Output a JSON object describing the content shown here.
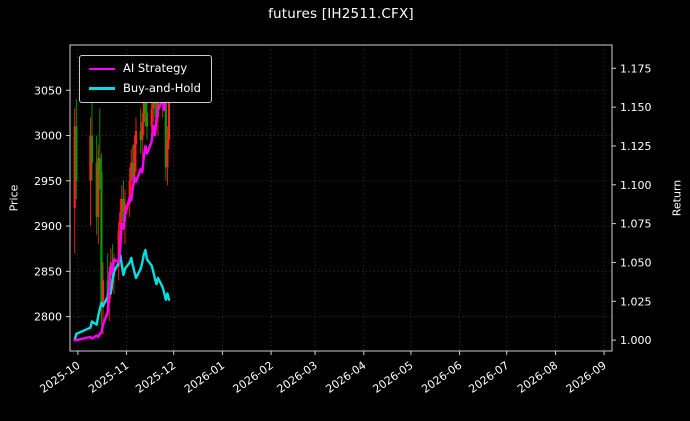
{
  "chart_data": {
    "type": "candlestick+line",
    "title": "futures [IH2511.CFX]",
    "ylabel_left": "Price",
    "ylabel_right": "Return",
    "legend_position": "upper-left",
    "grid": "dotted",
    "x_domain": [
      "2025-09-26",
      "2026-09-06"
    ],
    "x_ticks": [
      {
        "d": "2025-10-01",
        "label": "2025-10"
      },
      {
        "d": "2025-11-01",
        "label": "2025-11"
      },
      {
        "d": "2025-12-01",
        "label": "2025-12"
      },
      {
        "d": "2026-01-01",
        "label": "2026-01"
      },
      {
        "d": "2026-02-01",
        "label": "2026-02"
      },
      {
        "d": "2026-03-01",
        "label": "2026-03"
      },
      {
        "d": "2026-04-01",
        "label": "2026-04"
      },
      {
        "d": "2026-05-01",
        "label": "2026-05"
      },
      {
        "d": "2026-06-01",
        "label": "2026-06"
      },
      {
        "d": "2026-07-01",
        "label": "2026-07"
      },
      {
        "d": "2026-08-01",
        "label": "2026-08"
      },
      {
        "d": "2026-09-01",
        "label": "2026-09"
      }
    ],
    "price_axis": {
      "range": [
        2762,
        3100
      ],
      "ticks": [
        {
          "v": 2800,
          "label": "2800"
        },
        {
          "v": 2850,
          "label": "2850"
        },
        {
          "v": 2900,
          "label": "2900"
        },
        {
          "v": 2950,
          "label": "2950"
        },
        {
          "v": 3000,
          "label": "3000"
        },
        {
          "v": 3050,
          "label": "3050"
        }
      ]
    },
    "return_axis": {
      "range": [
        0.993,
        1.19
      ],
      "ticks": [
        {
          "v": 1.0,
          "label": "1.000"
        },
        {
          "v": 1.025,
          "label": "1.025"
        },
        {
          "v": 1.05,
          "label": "1.050"
        },
        {
          "v": 1.075,
          "label": "1.075"
        },
        {
          "v": 1.1,
          "label": "1.100"
        },
        {
          "v": 1.125,
          "label": "1.125"
        },
        {
          "v": 1.15,
          "label": "1.150"
        },
        {
          "v": 1.175,
          "label": "1.175"
        }
      ]
    },
    "dates": [
      "2025-09-29",
      "2025-09-30",
      "2025-10-09",
      "2025-10-10",
      "2025-10-13",
      "2025-10-14",
      "2025-10-15",
      "2025-10-16",
      "2025-10-17",
      "2025-10-20",
      "2025-10-21",
      "2025-10-22",
      "2025-10-23",
      "2025-10-24",
      "2025-10-27",
      "2025-10-28",
      "2025-10-29",
      "2025-10-30",
      "2025-10-31",
      "2025-11-03",
      "2025-11-04",
      "2025-11-05",
      "2025-11-06",
      "2025-11-07",
      "2025-11-10",
      "2025-11-11",
      "2025-11-12",
      "2025-11-13",
      "2025-11-14",
      "2025-11-17",
      "2025-11-18",
      "2025-11-19",
      "2025-11-20",
      "2025-11-21",
      "2025-11-24",
      "2025-11-25",
      "2025-11-26",
      "2025-11-27",
      "2025-11-28"
    ],
    "candles": {
      "o": [
        2920,
        3010,
        2950,
        3000,
        2970,
        2910,
        2975,
        2960,
        2810,
        2840,
        2815,
        2850,
        2860,
        2845,
        2855,
        2895,
        2915,
        2930,
        2905,
        2925,
        2950,
        2970,
        2955,
        2990,
        3005,
        2995,
        3015,
        3040,
        3025,
        3010,
        3030,
        3055,
        3035,
        3020,
        3040,
        3060,
        3045,
        2965,
        2995
      ],
      "h": [
        3030,
        3040,
        3020,
        3050,
        3000,
        2990,
        3030,
        2980,
        2860,
        2870,
        2855,
        2875,
        2880,
        2870,
        2905,
        2930,
        2945,
        2950,
        2940,
        2965,
        2985,
        2990,
        3000,
        3020,
        3030,
        3025,
        3050,
        3060,
        3045,
        3040,
        3065,
        3070,
        3060,
        3050,
        3070,
        3075,
        3065,
        3010,
        3060
      ],
      "l": [
        2870,
        2930,
        2900,
        2950,
        2890,
        2880,
        2940,
        2790,
        2780,
        2800,
        2795,
        2820,
        2830,
        2825,
        2840,
        2870,
        2890,
        2895,
        2880,
        2910,
        2930,
        2940,
        2945,
        2960,
        2980,
        2975,
        3000,
        3010,
        2995,
        2990,
        3015,
        3020,
        3005,
        3000,
        3020,
        3030,
        2950,
        2945,
        2985
      ],
      "c": [
        3010,
        2950,
        3000,
        2970,
        2910,
        2975,
        2960,
        2810,
        2840,
        2815,
        2850,
        2860,
        2845,
        2855,
        2895,
        2915,
        2930,
        2905,
        2925,
        2950,
        2970,
        2955,
        2990,
        3005,
        2995,
        3015,
        3040,
        3025,
        3010,
        3030,
        3055,
        3035,
        3020,
        3040,
        3060,
        3045,
        2965,
        2995,
        3050
      ]
    },
    "series": [
      {
        "name": "AI Strategy",
        "color": "#ff00ff",
        "axis": "return",
        "values": [
          1.0,
          1.0,
          1.002,
          1.001,
          1.003,
          1.002,
          1.004,
          1.005,
          1.01,
          1.018,
          1.035,
          1.048,
          1.044,
          1.052,
          1.05,
          1.06,
          1.075,
          1.072,
          1.08,
          1.092,
          1.09,
          1.098,
          1.105,
          1.102,
          1.11,
          1.108,
          1.118,
          1.125,
          1.12,
          1.128,
          1.138,
          1.132,
          1.142,
          1.148,
          1.155,
          1.148,
          1.162,
          1.158,
          1.17
        ]
      },
      {
        "name": "Buy-and-Hold",
        "color": "#00e0e0",
        "axis": "return",
        "values": [
          1.0,
          1.004,
          1.008,
          1.012,
          1.01,
          1.016,
          1.02,
          1.024,
          1.022,
          1.028,
          1.034,
          1.03,
          1.038,
          1.044,
          1.05,
          1.055,
          1.048,
          1.042,
          1.046,
          1.05,
          1.053,
          1.048,
          1.044,
          1.04,
          1.046,
          1.05,
          1.055,
          1.058,
          1.052,
          1.048,
          1.044,
          1.04,
          1.036,
          1.04,
          1.034,
          1.03,
          1.026,
          1.03,
          1.026
        ]
      }
    ],
    "colors": {
      "bg": "#000000",
      "text": "#ffffff",
      "grid": "#3a3a3a",
      "frame": "#cfcfcf",
      "up": "#ff2020",
      "down": "#00a000"
    }
  }
}
